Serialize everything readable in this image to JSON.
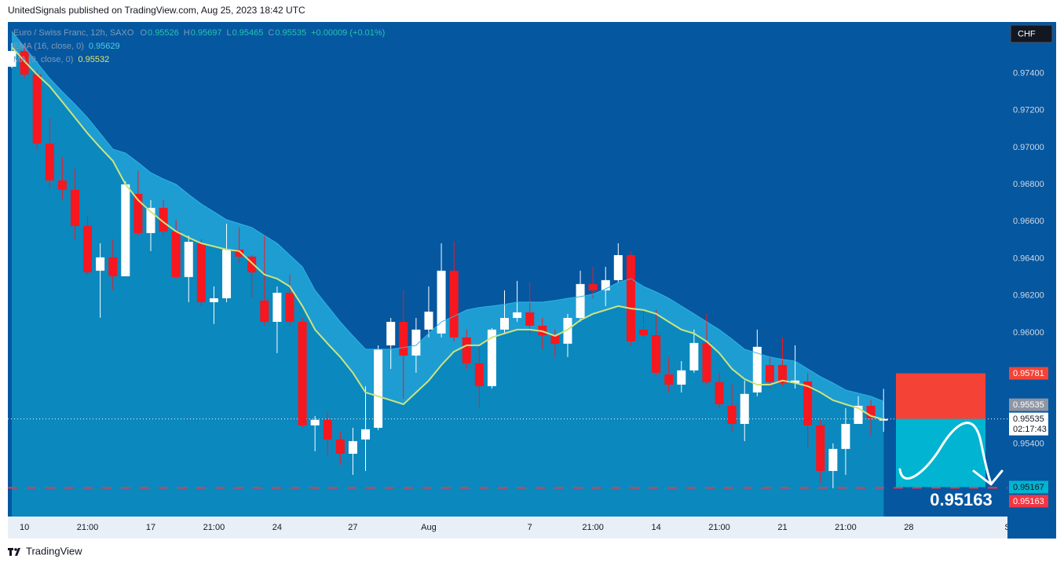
{
  "header": "UnitedSignals published on TradingView.com, Aug 25, 2023 18:42 UTC",
  "footer": "TradingView",
  "chart_data": {
    "type": "candlestick",
    "title": "Euro / Swiss Franc, 12h, SAXO",
    "ohlc_letters": [
      "O",
      "H",
      "L",
      "C"
    ],
    "change": "+0.00009 (+0.01%)",
    "currency": "CHF",
    "countdown": "02:17:43",
    "up_color": "#ffffff",
    "down_color": "#f7171f",
    "categories": [
      null,
      "10",
      null,
      null,
      null,
      null,
      "21:00",
      null,
      null,
      null,
      null,
      "17",
      null,
      null,
      null,
      null,
      "21:00",
      null,
      null,
      null,
      null,
      "24",
      null,
      null,
      null,
      null,
      null,
      "27",
      null,
      null,
      null,
      null,
      null,
      "Aug",
      null,
      null,
      null,
      null,
      null,
      null,
      null,
      "7",
      null,
      null,
      null,
      null,
      "21:00",
      null,
      null,
      null,
      null,
      "14",
      null,
      null,
      null,
      null,
      "21:00",
      null,
      null,
      null,
      null,
      "21",
      null,
      null,
      null,
      null,
      "21:00",
      null,
      null,
      null,
      null,
      "28",
      null,
      null,
      null,
      null,
      null,
      null,
      null,
      "Se"
    ],
    "open": [
      0.97436,
      0.97521,
      0.97394,
      0.97021,
      0.96822,
      0.96771,
      0.96576,
      0.96335,
      0.96407,
      0.96305,
      0.9675,
      0.96538,
      0.96674,
      0.96547,
      0.96301,
      0.96483,
      0.96165,
      0.96186,
      0.96449,
      0.96411,
      0.96174,
      0.96059,
      0.96216,
      0.96059,
      0.955,
      0.9553,
      0.95424,
      0.95347,
      0.95424,
      0.95487,
      0.95932,
      0.96059,
      0.95877,
      0.96017,
      0.95996,
      0.96335,
      0.95975,
      0.95835,
      0.95712,
      0.96017,
      0.9608,
      0.9611,
      0.96038,
      0.95987,
      0.95941,
      0.9608,
      0.96263,
      0.96229,
      0.96284,
      0.96419,
      0.96017,
      0.95987,
      0.95775,
      0.9572,
      0.95797,
      0.95945,
      0.95733,
      0.95606,
      0.95508,
      0.95678,
      0.95826,
      0.95826,
      0.95729,
      0.95737,
      0.955,
      0.95254,
      0.95373,
      0.95508,
      0.95606,
      0.95526,
      null,
      null,
      null,
      null,
      null,
      null,
      null,
      null,
      null,
      null
    ],
    "high": [
      0.97564,
      0.97564,
      0.97415,
      0.97161,
      0.96949,
      0.96886,
      0.96631,
      0.96483,
      0.96504,
      0.96818,
      0.96873,
      0.96716,
      0.96716,
      0.9661,
      0.96525,
      0.96504,
      0.9625,
      0.96589,
      0.96568,
      0.96419,
      0.96525,
      0.9625,
      0.96314,
      0.9608,
      0.95551,
      0.95572,
      0.95466,
      0.95487,
      0.95712,
      0.95932,
      0.9608,
      0.96229,
      0.9608,
      0.9625,
      0.96483,
      0.96491,
      0.96017,
      0.95932,
      0.96025,
      0.96229,
      0.9628,
      0.96271,
      0.9608,
      0.96017,
      0.96102,
      0.96335,
      0.96356,
      0.96356,
      0.96483,
      0.96441,
      0.96123,
      0.96123,
      0.95869,
      0.95847,
      0.96017,
      0.96102,
      0.95784,
      0.9572,
      0.95742,
      0.96017,
      0.95869,
      0.95975,
      0.95932,
      0.95784,
      0.9553,
      0.95403,
      0.95593,
      0.95657,
      0.95636,
      0.95697,
      null,
      null,
      null,
      null,
      null,
      null,
      null,
      null,
      null,
      null
    ],
    "low": [
      0.97428,
      0.97373,
      0.96991,
      0.9678,
      0.96716,
      0.96504,
      0.96314,
      0.96081,
      0.96229,
      0.96305,
      0.96525,
      0.96441,
      0.96525,
      0.96292,
      0.96165,
      0.96144,
      0.96047,
      0.96165,
      0.96377,
      0.96186,
      0.96038,
      0.9589,
      0.96038,
      0.95487,
      0.9536,
      0.95339,
      0.95288,
      0.95233,
      0.95254,
      0.95475,
      0.95805,
      0.95644,
      0.95784,
      0.95975,
      0.95975,
      0.95953,
      0.95805,
      0.95593,
      0.95699,
      0.95996,
      0.96059,
      0.95996,
      0.95911,
      0.95869,
      0.95869,
      0.96059,
      0.96186,
      0.96144,
      0.96271,
      0.95932,
      0.95975,
      0.95771,
      0.95678,
      0.95678,
      0.95784,
      0.9572,
      0.95593,
      0.95466,
      0.95415,
      0.95657,
      0.95699,
      0.95712,
      0.95699,
      0.95381,
      0.95191,
      0.95161,
      0.95233,
      0.95508,
      0.95445,
      0.95465,
      null,
      null,
      null,
      null,
      null,
      null,
      null,
      null,
      null,
      null
    ],
    "close": [
      0.97521,
      0.97394,
      0.97021,
      0.96822,
      0.96771,
      0.96576,
      0.96326,
      0.96407,
      0.96305,
      0.96801,
      0.96538,
      0.96674,
      0.96547,
      0.96301,
      0.96491,
      0.96165,
      0.96186,
      0.96449,
      0.96411,
      0.96326,
      0.96059,
      0.96216,
      0.96059,
      0.955,
      0.9553,
      0.95424,
      0.95347,
      0.95415,
      0.95479,
      0.95911,
      0.96059,
      0.95877,
      0.96017,
      0.96114,
      0.96335,
      0.95975,
      0.95835,
      0.95712,
      0.96017,
      0.9608,
      0.9611,
      0.96038,
      0.95987,
      0.95941,
      0.9608,
      0.96263,
      0.96229,
      0.96284,
      0.96419,
      0.95953,
      0.95987,
      0.95784,
      0.9572,
      0.95797,
      0.95945,
      0.95733,
      0.95614,
      0.95508,
      0.9567,
      0.95924,
      0.95733,
      0.95729,
      0.95742,
      0.955,
      0.95254,
      0.95373,
      0.95508,
      0.95606,
      0.95538,
      0.95535,
      null,
      null,
      null,
      null,
      null,
      null,
      null,
      null,
      null,
      null
    ],
    "indicators": [
      {
        "name": "EMA (16, close, 0)",
        "color": "#2fb3e6",
        "fill": "#1d9dd2",
        "text_color": "#4dd0e1",
        "values": [
          0.97627,
          0.97542,
          0.97458,
          0.97373,
          0.97301,
          0.97233,
          0.97161,
          0.97076,
          0.96991,
          0.9697,
          0.96919,
          0.96864,
          0.9683,
          0.96801,
          0.96746,
          0.96695,
          0.96653,
          0.9661,
          0.96589,
          0.96568,
          0.96525,
          0.96483,
          0.96419,
          0.96356,
          0.96229,
          0.96144,
          0.96059,
          0.95983,
          0.95911,
          0.95911,
          0.95911,
          0.9592,
          0.95932,
          0.95996,
          0.96059,
          0.96089,
          0.96123,
          0.96136,
          0.96144,
          0.96153,
          0.96165,
          0.96165,
          0.96165,
          0.96174,
          0.96186,
          0.96195,
          0.96208,
          0.96237,
          0.96271,
          0.96292,
          0.9625,
          0.9622,
          0.96186,
          0.96144,
          0.96102,
          0.96059,
          0.96017,
          0.95966,
          0.95911,
          0.9589,
          0.95869,
          0.95856,
          0.95847,
          0.95805,
          0.95763,
          0.95729,
          0.95691,
          0.95674,
          0.95657,
          0.95629,
          null,
          null,
          null,
          null,
          null,
          null,
          null,
          null,
          null,
          null
        ]
      },
      {
        "name": "MA (9, close, 0)",
        "color": "#cde47e",
        "fill": "#0b88be",
        "text_color": "#e0e86a",
        "values": [
          0.97542,
          0.97466,
          0.97394,
          0.9733,
          0.97246,
          0.97161,
          0.97076,
          0.97,
          0.96928,
          0.96801,
          0.96716,
          0.96653,
          0.96597,
          0.96547,
          0.96513,
          0.96483,
          0.96466,
          0.96449,
          0.96441,
          0.96377,
          0.96314,
          0.96292,
          0.9625,
          0.96144,
          0.96017,
          0.95941,
          0.95869,
          0.95784,
          0.95678,
          0.95657,
          0.95636,
          0.95614,
          0.95678,
          0.95742,
          0.95826,
          0.95898,
          0.95932,
          0.95932,
          0.95975,
          0.95996,
          0.96017,
          0.96017,
          0.96008,
          0.95983,
          0.96017,
          0.96068,
          0.96102,
          0.96123,
          0.96144,
          0.96131,
          0.96123,
          0.96102,
          0.96059,
          0.96017,
          0.95996,
          0.95953,
          0.9589,
          0.95805,
          0.9575,
          0.9572,
          0.9572,
          0.95742,
          0.95729,
          0.95712,
          0.95678,
          0.95636,
          0.95614,
          0.95593,
          0.95551,
          0.95532,
          null,
          null,
          null,
          null,
          null,
          null,
          null,
          null,
          null,
          null
        ]
      }
    ],
    "position": {
      "stop": 0.95781,
      "target": 0.95167,
      "stop_color": "#f44336",
      "target_color": "#00b4d2"
    },
    "hline": {
      "value": 0.95163,
      "color": "#f23645"
    },
    "ylim": [
      0.95008,
      0.97669
    ],
    "yticks": [
      {
        "value": 0.954,
        "label": "0.95400"
      },
      {
        "value": 0.96,
        "label": "0.96000"
      },
      {
        "value": 0.962,
        "label": "0.96200"
      },
      {
        "value": 0.964,
        "label": "0.96400"
      },
      {
        "value": 0.966,
        "label": "0.96600"
      },
      {
        "value": 0.968,
        "label": "0.96800"
      },
      {
        "value": 0.97,
        "label": "0.97000"
      },
      {
        "value": 0.972,
        "label": "0.97200"
      },
      {
        "value": 0.974,
        "label": "0.97400"
      }
    ],
    "grid": false
  }
}
